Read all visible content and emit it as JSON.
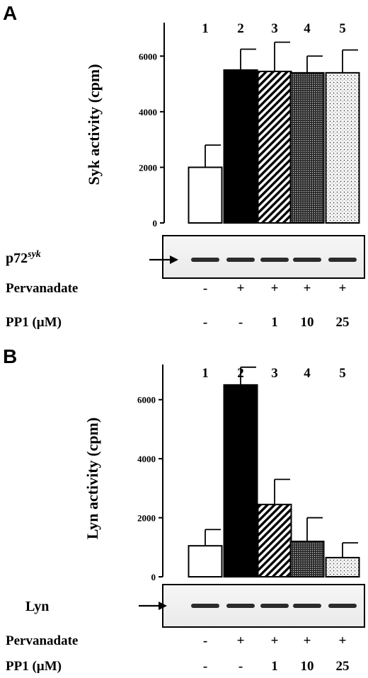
{
  "chart_data": [
    {
      "type": "bar",
      "panel_letter": "A",
      "lane_numbers": [
        "1",
        "2",
        "3",
        "4",
        "5"
      ],
      "categories": [
        "1",
        "2",
        "3",
        "4",
        "5"
      ],
      "values": [
        2000,
        5500,
        5450,
        5400,
        5400
      ],
      "errors": [
        800,
        750,
        1050,
        600,
        820
      ],
      "bar_patterns": [
        "open",
        "solid",
        "diagonal-stripes",
        "dense-dots",
        "sparse-dots"
      ],
      "ylabel": "Syk activity (cpm)",
      "yticks": [
        "0",
        "2000",
        "4000",
        "6000"
      ],
      "ylim": [
        0,
        7000
      ],
      "blot": {
        "label": "p72",
        "label_sup": "syk",
        "arrow": "→"
      },
      "treatments": [
        {
          "label": "Pervanadate",
          "values": [
            "-",
            "+",
            "+",
            "+",
            "+"
          ]
        },
        {
          "label": "PP1 (µM)",
          "values": [
            "-",
            "-",
            "1",
            "10",
            "25"
          ]
        }
      ]
    },
    {
      "type": "bar",
      "panel_letter": "B",
      "lane_numbers": [
        "1",
        "2",
        "3",
        "4",
        "5"
      ],
      "categories": [
        "1",
        "2",
        "3",
        "4",
        "5"
      ],
      "values": [
        1050,
        6500,
        2450,
        1200,
        650
      ],
      "errors": [
        550,
        600,
        850,
        800,
        500
      ],
      "bar_patterns": [
        "open",
        "solid",
        "diagonal-stripes",
        "dense-dots",
        "sparse-dots"
      ],
      "ylabel": "Lyn activity (cpm)",
      "yticks": [
        "0",
        "2000",
        "4000",
        "6000"
      ],
      "ylim": [
        0,
        7000
      ],
      "blot": {
        "label": "Lyn",
        "label_sup": "",
        "arrow": "→"
      },
      "treatments": [
        {
          "label": "Pervanadate",
          "values": [
            "-",
            "+",
            "+",
            "+",
            "+"
          ]
        },
        {
          "label": "PP1 (µM)",
          "values": [
            "-",
            "-",
            "1",
            "10",
            "25"
          ]
        }
      ]
    }
  ]
}
